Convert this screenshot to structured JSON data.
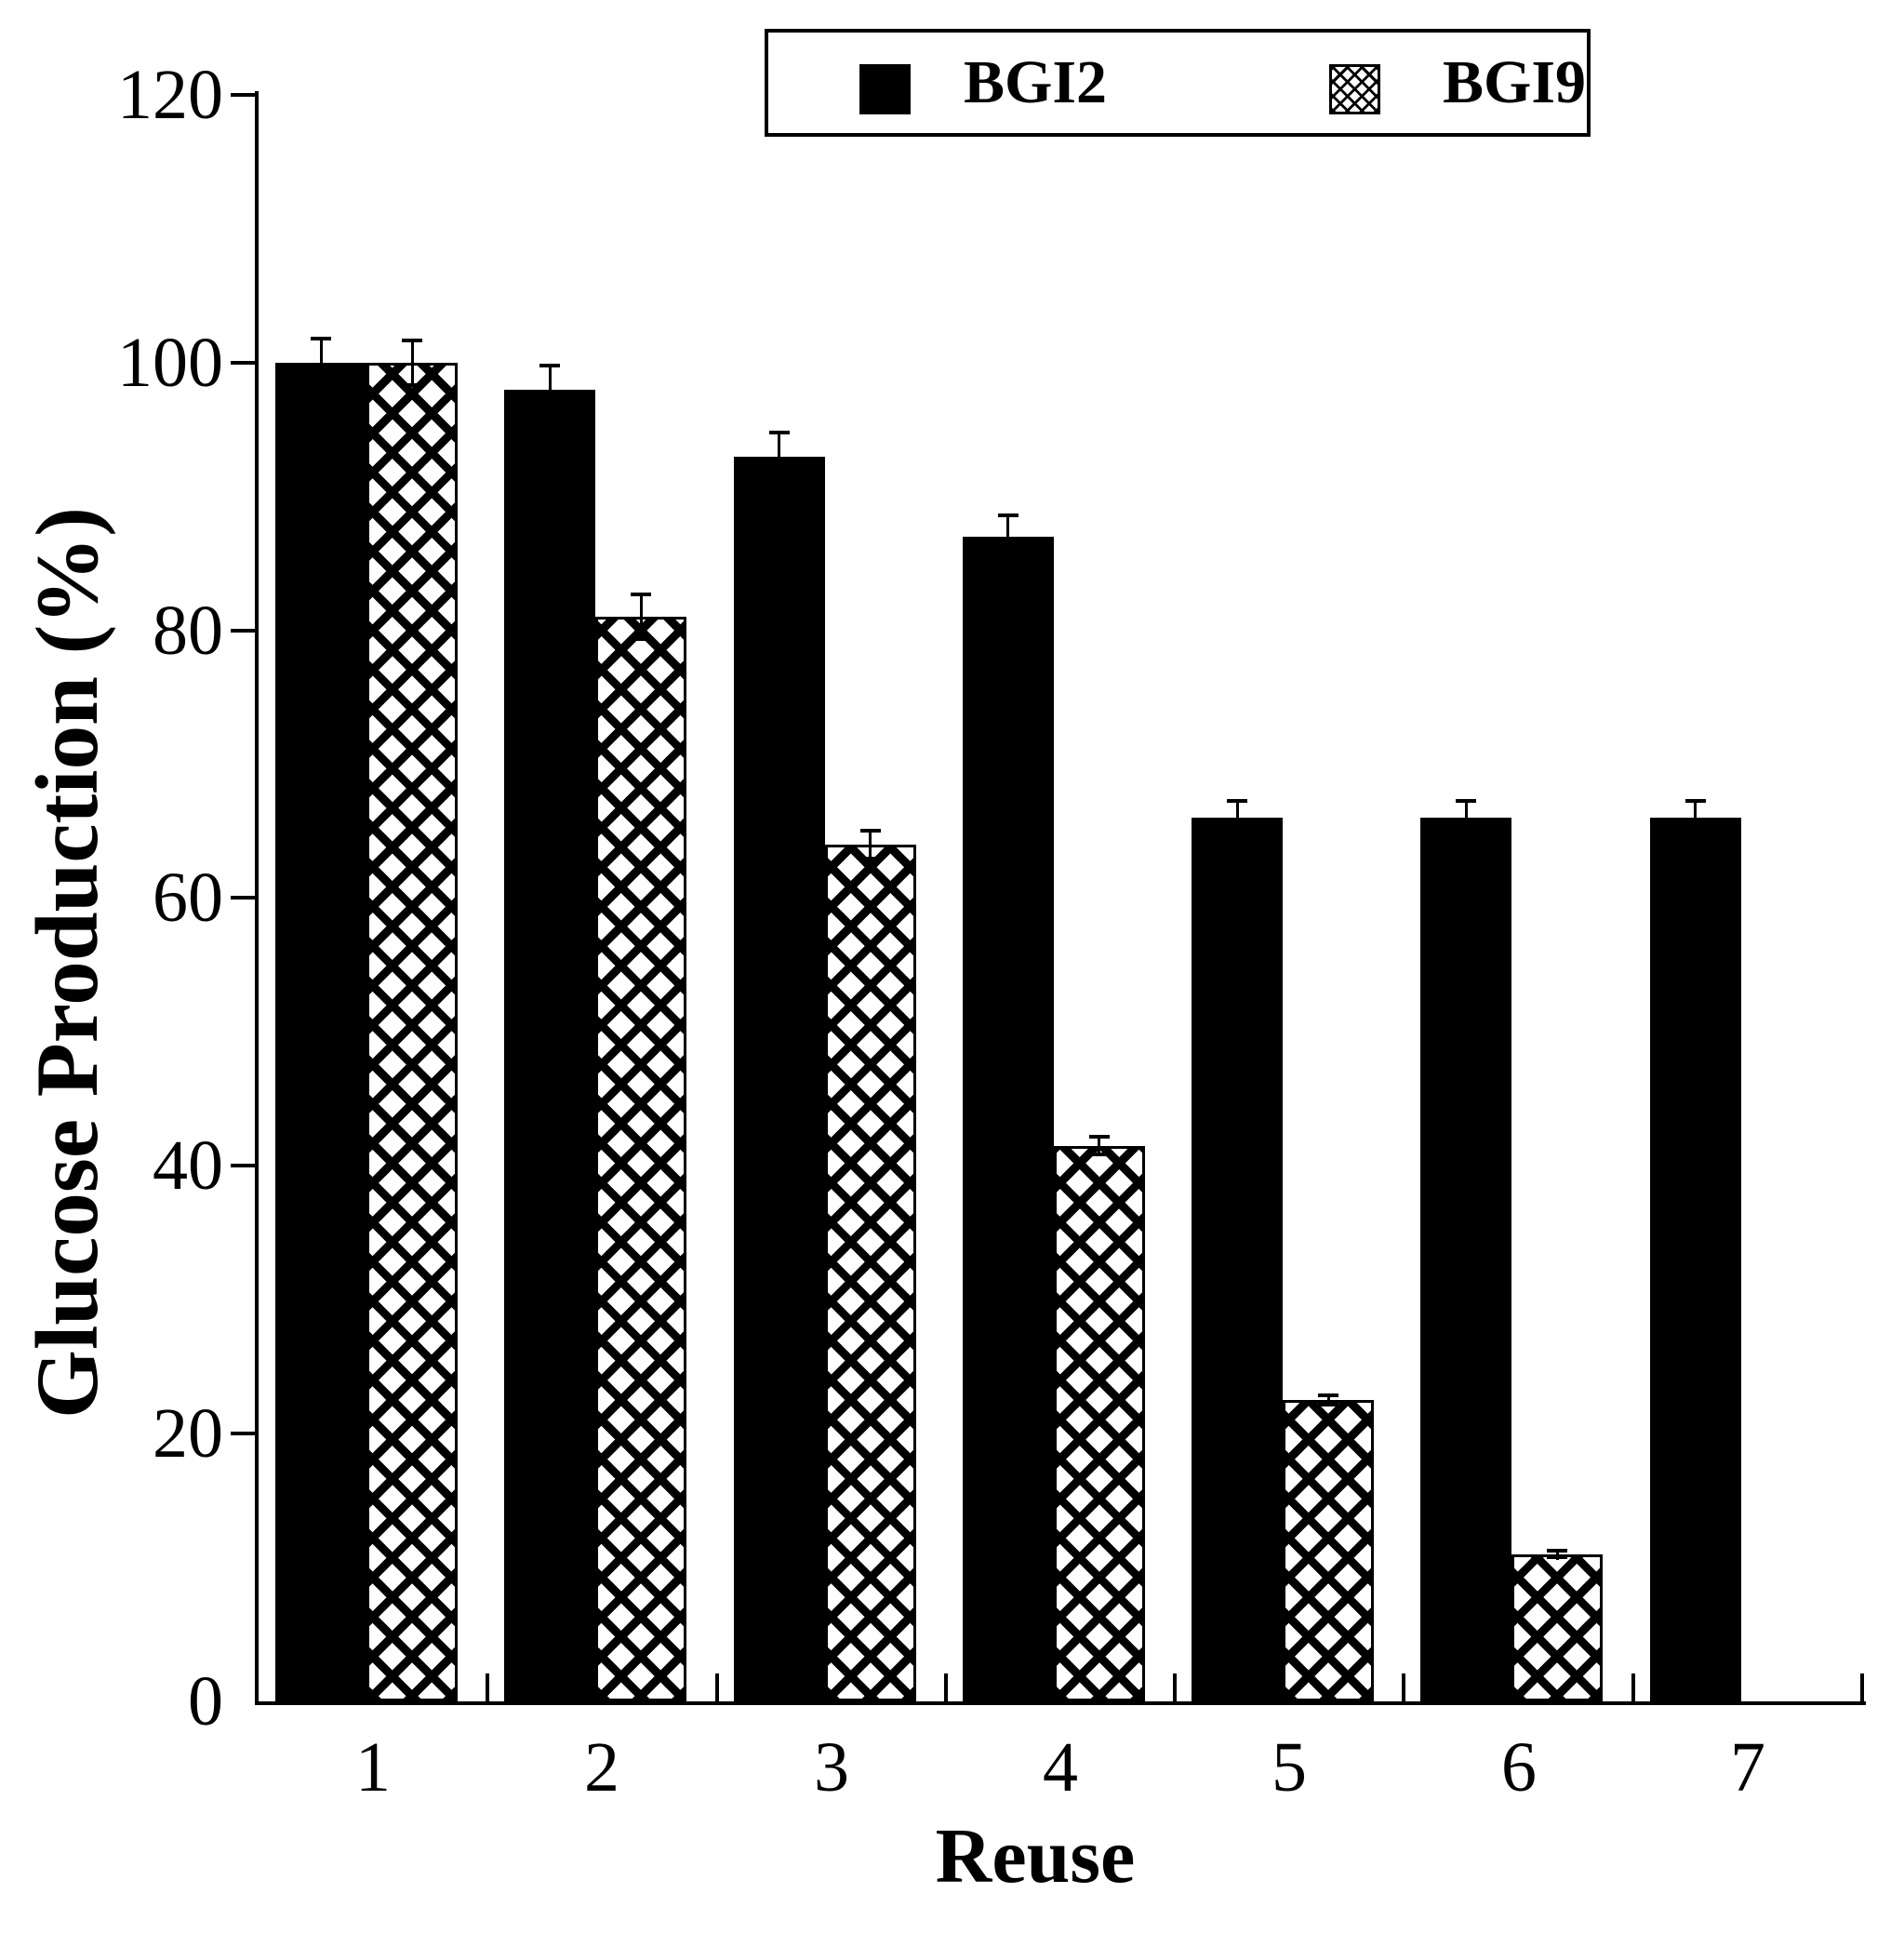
{
  "figure": {
    "background_color": "#ffffff",
    "ink_color": "#000000"
  },
  "legend": {
    "items": [
      {
        "label": "BGI2",
        "swatch": "solid-black-square"
      },
      {
        "label": "BGI9",
        "swatch": "crosshatch-square"
      }
    ]
  },
  "chart_data": {
    "type": "bar",
    "title": "",
    "xlabel": "Reuse",
    "ylabel": "Glucose Production (%)",
    "categories": [
      "1",
      "2",
      "3",
      "4",
      "5",
      "6",
      "7"
    ],
    "series": [
      {
        "name": "BGI2",
        "style": "solid-black",
        "values": [
          100,
          98,
          93,
          87,
          66,
          66,
          66
        ],
        "errors": [
          1.9,
          1.9,
          1.9,
          1.7,
          1.4,
          1.4,
          1.4
        ]
      },
      {
        "name": "BGI9",
        "style": "crosshatch",
        "values": [
          100,
          81,
          64,
          41.5,
          22.5,
          11,
          null
        ],
        "errors": [
          1.8,
          1.8,
          1.2,
          0.8,
          0.5,
          0.4,
          null
        ]
      }
    ],
    "ylim": [
      0,
      120
    ],
    "yticks": [
      0,
      20,
      40,
      60,
      80,
      100,
      120
    ],
    "error_bars": true,
    "grid": false,
    "legend_position": "top-center"
  }
}
